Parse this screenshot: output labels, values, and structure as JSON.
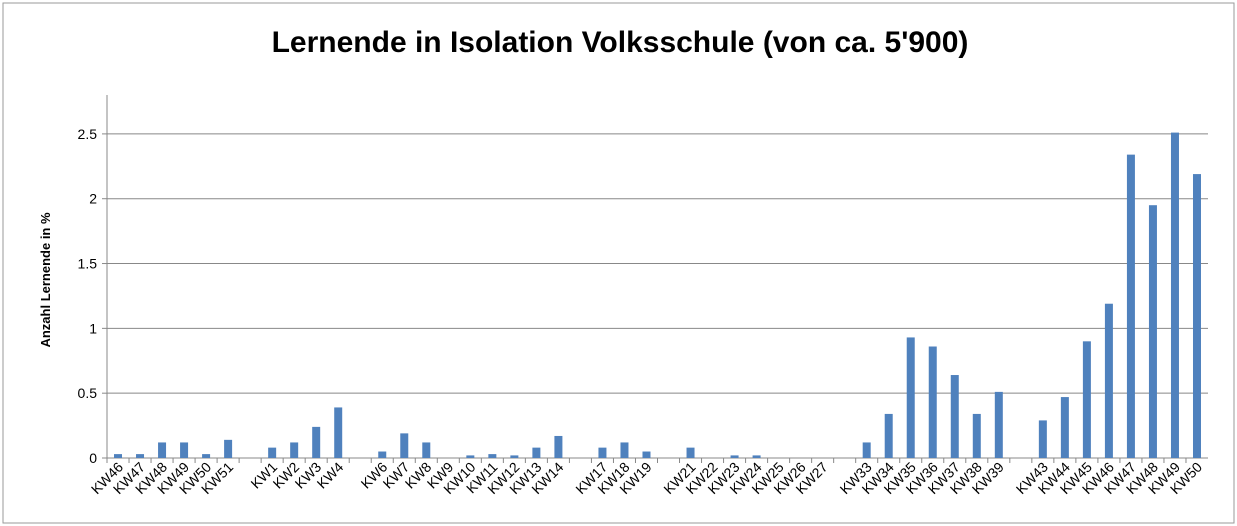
{
  "chart_data": {
    "type": "bar",
    "title": "Lernende in Isolation Volksschule (von ca. 5'900)",
    "y_label": "Anzahl Lernende in %",
    "categories": [
      "KW46",
      "KW47",
      "KW48",
      "KW49",
      "KW50",
      "KW51",
      null,
      "KW1",
      "KW2",
      "KW3",
      "KW4",
      null,
      "KW6",
      "KW7",
      "KW8",
      "KW9",
      "KW10",
      "KW11",
      "KW12",
      "KW13",
      "KW14",
      null,
      "KW17",
      "KW18",
      "KW19",
      null,
      "KW21",
      "KW22",
      "KW23",
      "KW24",
      "KW25",
      "KW26",
      "KW27",
      null,
      "KW33",
      "KW34",
      "KW35",
      "KW36",
      "KW37",
      "KW38",
      "KW39",
      null,
      "KW43",
      "KW44",
      "KW45",
      "KW46",
      "KW47",
      "KW48",
      "KW49",
      "KW50"
    ],
    "values": [
      0.03,
      0.03,
      0.12,
      0.12,
      0.03,
      0.14,
      null,
      0.08,
      0.12,
      0.24,
      0.39,
      null,
      0.05,
      0.19,
      0.12,
      0,
      0.02,
      0.03,
      0.02,
      0.08,
      0.17,
      null,
      0.08,
      0.12,
      0.05,
      null,
      0.08,
      0,
      0.02,
      0.02,
      0,
      0,
      0,
      null,
      0.12,
      0.34,
      0.93,
      0.86,
      0.64,
      0.34,
      0.51,
      null,
      0.29,
      0.47,
      0.9,
      1.19,
      2.34,
      1.95,
      2.51,
      2.19
    ],
    "color": "#4f81bd",
    "ylim": [
      0,
      2.8
    ],
    "yticks": [
      0,
      0.5,
      1,
      1.5,
      2,
      2.5
    ],
    "grid": true
  }
}
